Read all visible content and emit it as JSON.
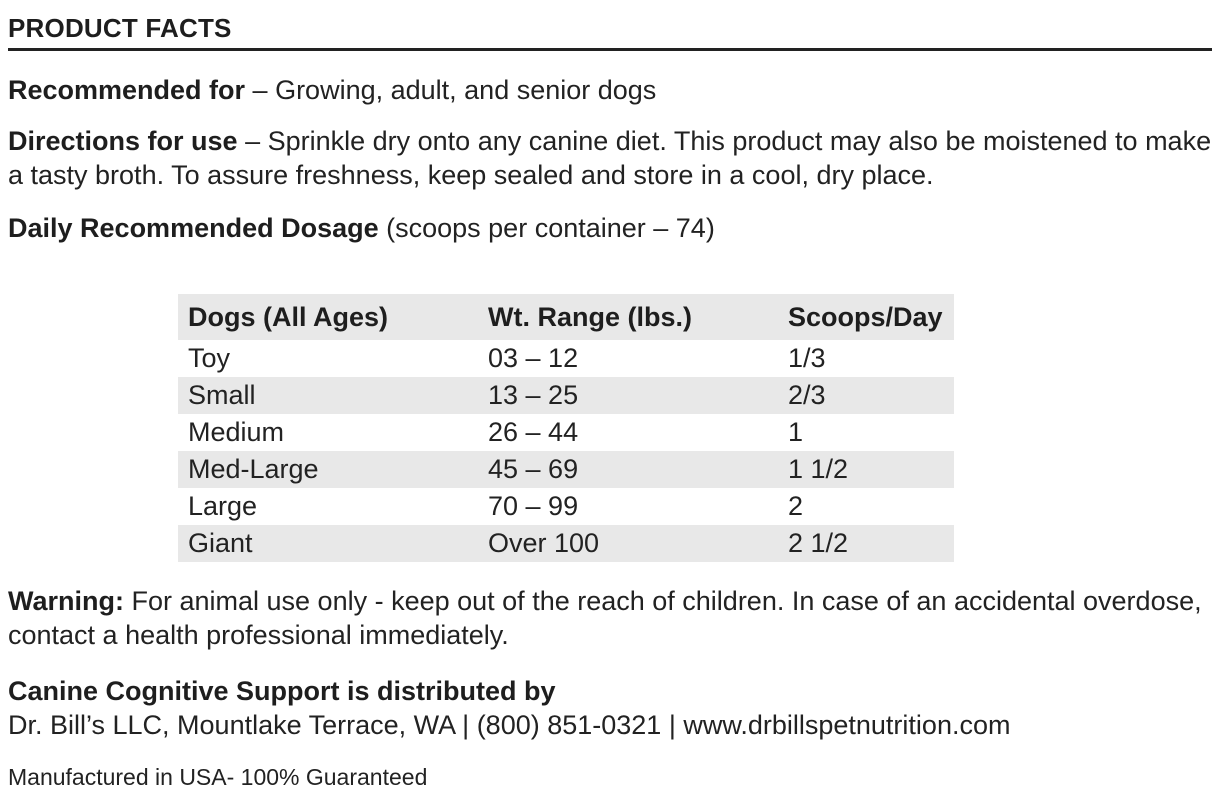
{
  "header": {
    "title": "PRODUCT FACTS"
  },
  "recommended": {
    "label": "Recommended for",
    "text": " – Growing, adult, and senior dogs"
  },
  "directions": {
    "label": "Directions for use",
    "text": " – Sprinkle dry onto any canine diet. This product may also be moistened to make a tasty broth. To assure freshness, keep sealed and store in a cool, dry place."
  },
  "dosage": {
    "label": "Daily Recommended Dosage",
    "text": " (scoops per container – 74)"
  },
  "table": {
    "headers": [
      "Dogs (All Ages)",
      "Wt. Range (lbs.)",
      "Scoops/Day"
    ],
    "rows": [
      [
        "Toy",
        "03 – 12",
        "1/3"
      ],
      [
        "Small",
        "13 – 25",
        "2/3"
      ],
      [
        "Medium",
        "26 – 44",
        "1"
      ],
      [
        "Med-Large",
        "45 – 69",
        "1 1/2"
      ],
      [
        "Large",
        "70 – 99",
        "2"
      ],
      [
        "Giant",
        "Over 100",
        "2 1/2"
      ]
    ]
  },
  "warning": {
    "label": "Warning:",
    "text": " For animal use only - keep out of the reach of children. In case of an accidental overdose, contact a health professional immediately."
  },
  "distributor": {
    "title": "Canine Cognitive Support is distributed by",
    "contact": "Dr. Bill’s LLC, Mountlake Terrace, WA | (800) 851-0321 | www.drbillspetnutrition.com"
  },
  "footer": {
    "manufactured": "Manufactured in USA- 100% Guaranteed"
  }
}
